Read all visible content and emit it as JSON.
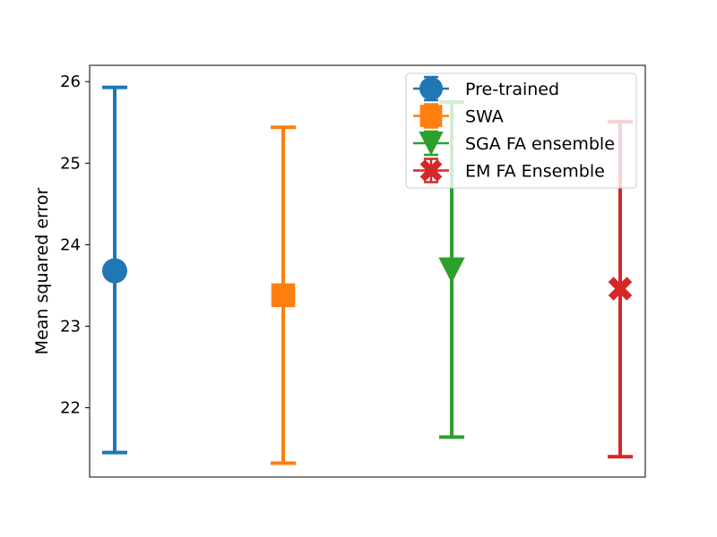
{
  "chart_data": {
    "type": "errorbar",
    "ylabel": "Mean squared error",
    "xlabel": "",
    "title": "",
    "ylim": [
      21.15,
      26.2
    ],
    "yticks": [
      22,
      23,
      24,
      25,
      26
    ],
    "legend_position": "top-right",
    "series": [
      {
        "name": "Pre-trained",
        "marker": "circle",
        "color": "#1f77b4",
        "x": 0,
        "mean": 23.68,
        "lower": 21.45,
        "upper": 25.93
      },
      {
        "name": "SWA",
        "marker": "square",
        "color": "#ff7f0e",
        "x": 1,
        "mean": 23.38,
        "lower": 21.32,
        "upper": 25.44
      },
      {
        "name": "SGA FA ensemble",
        "marker": "triangle-down",
        "color": "#2ca02c",
        "x": 2,
        "mean": 23.69,
        "lower": 21.64,
        "upper": 25.75
      },
      {
        "name": "EM FA Ensemble",
        "marker": "x-filled",
        "color": "#d62728",
        "x": 3,
        "mean": 23.46,
        "lower": 21.4,
        "upper": 25.51
      }
    ]
  }
}
